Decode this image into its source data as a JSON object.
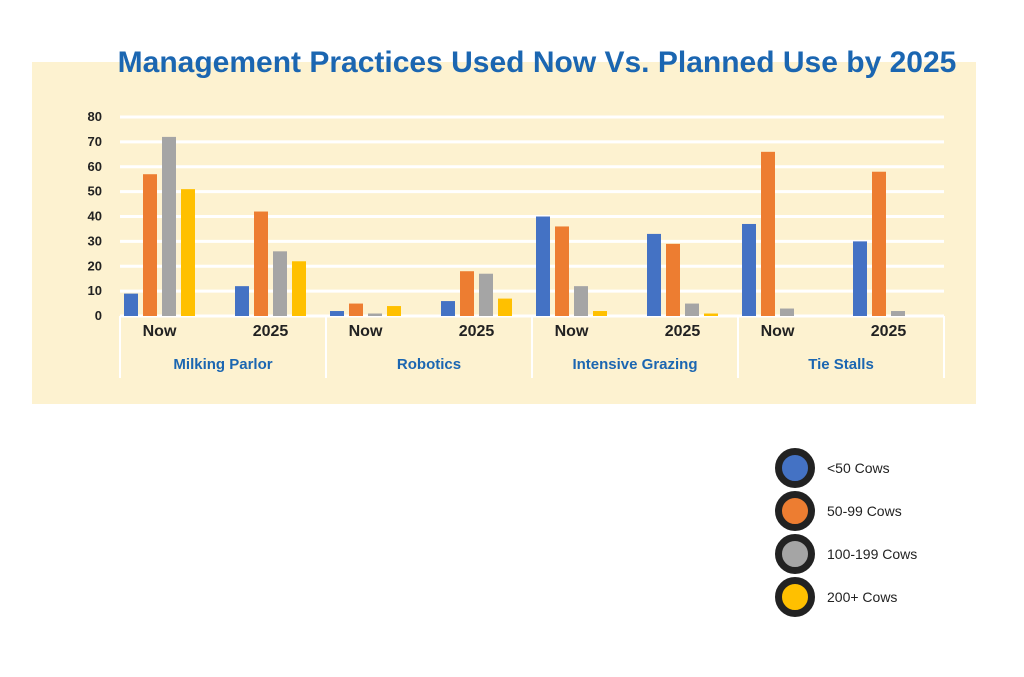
{
  "chart_data": {
    "type": "bar",
    "title": "Management Practices Used Now Vs. Planned Use by 2025",
    "ylim": [
      0,
      80
    ],
    "yticks": [
      0,
      10,
      20,
      30,
      40,
      50,
      60,
      70,
      80
    ],
    "grid": true,
    "legend_position": "bottom-right",
    "series_names": [
      "<50 Cows",
      "50-99 Cows",
      "100-199 Cows",
      "200+ Cows"
    ],
    "colors": [
      "#4472c4",
      "#ed7d31",
      "#a5a5a5",
      "#ffc000"
    ],
    "groups": [
      {
        "name": "Milking Parlor",
        "categories": [
          {
            "label": "Now",
            "values": [
              9,
              57,
              72,
              51
            ]
          },
          {
            "label": "2025",
            "values": [
              12,
              42,
              26,
              22
            ]
          }
        ]
      },
      {
        "name": "Robotics",
        "categories": [
          {
            "label": "Now",
            "values": [
              2,
              5,
              1,
              4
            ]
          },
          {
            "label": "2025",
            "values": [
              6,
              18,
              17,
              7
            ]
          }
        ]
      },
      {
        "name": "Intensive Grazing",
        "categories": [
          {
            "label": "Now",
            "values": [
              40,
              36,
              12,
              2
            ]
          },
          {
            "label": "2025",
            "values": [
              33,
              29,
              5,
              1
            ]
          }
        ]
      },
      {
        "name": "Tie Stalls",
        "categories": [
          {
            "label": "Now",
            "values": [
              37,
              66,
              3,
              0
            ]
          },
          {
            "label": "2025",
            "values": [
              30,
              58,
              2,
              0
            ]
          }
        ]
      }
    ]
  }
}
